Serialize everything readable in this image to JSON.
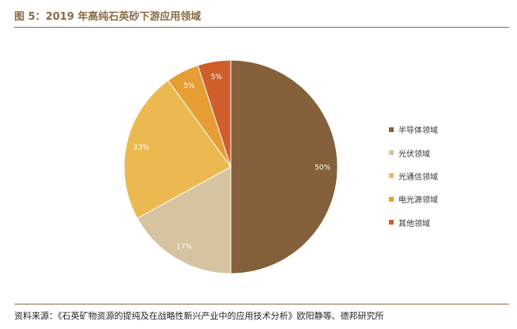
{
  "header": {
    "title": "图 5：2019 年高纯石英砂下游应用领域"
  },
  "footer": {
    "source": "资料来源：《石英矿物资源的提纯及在战略性新兴产业中的应用技术分析》欧阳静等、德邦研究所"
  },
  "chart_data": {
    "type": "pie",
    "title": "图 5：2019 年高纯石英砂下游应用领域",
    "legend_position": "right",
    "slices": [
      {
        "label": "半导体领域",
        "value": 50,
        "value_label": "50%",
        "color": "#84613a"
      },
      {
        "label": "光伏领域",
        "value": 17,
        "value_label": "17%",
        "color": "#d5c49f"
      },
      {
        "label": "光通信领域",
        "value": 23,
        "value_label": "23%",
        "color": "#ebb94f"
      },
      {
        "label": "电光源领域",
        "value": 5,
        "value_label": "5%",
        "color": "#e89c34"
      },
      {
        "label": "其他领域",
        "value": 5,
        "value_label": "5%",
        "color": "#cf5e2c"
      }
    ]
  }
}
